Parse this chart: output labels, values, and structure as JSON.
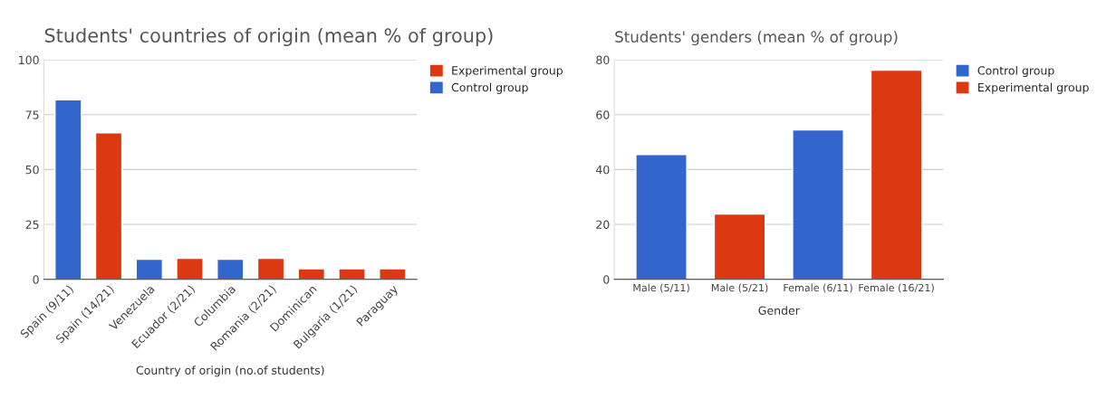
{
  "chart_data": [
    {
      "type": "bar",
      "title": "Students' countries of origin (mean % of group)",
      "xlabel": "Country of origin (no.of students)",
      "categories": [
        "Spain (9/11)",
        "Spain (14/21)",
        "Venezuela",
        "Ecuador (2/21)",
        "Columbia",
        "Romania (2/21)",
        "Dominican",
        "Bulgaria (1/21)",
        "Paraguay"
      ],
      "series": [
        {
          "name": "Experimental group",
          "color": "#dc3912",
          "values": [
            null,
            66.7,
            null,
            9.5,
            null,
            9.5,
            4.8,
            4.8,
            4.8
          ]
        },
        {
          "name": "Control group",
          "color": "#3366cc",
          "values": [
            81.8,
            null,
            9.1,
            null,
            9.1,
            null,
            null,
            null,
            null
          ]
        }
      ],
      "ylim": [
        0,
        100
      ],
      "yticks": [
        0,
        25,
        50,
        75,
        100
      ],
      "grid": "y",
      "legend": "top right"
    },
    {
      "type": "bar",
      "title": "Students' genders (mean % of group)",
      "xlabel": "Gender",
      "categories": [
        "Male (5/11)",
        "Male (5/21)",
        "Female (6/11)",
        "Female (16/21)"
      ],
      "series": [
        {
          "name": "Control group",
          "color": "#3366cc",
          "values": [
            45.5,
            null,
            54.5,
            null
          ]
        },
        {
          "name": "Experimental group",
          "color": "#dc3912",
          "values": [
            null,
            23.8,
            null,
            76.2
          ]
        }
      ],
      "ylim": [
        0,
        80
      ],
      "yticks": [
        0,
        20,
        40,
        60,
        80
      ],
      "grid": "y",
      "legend": "top right"
    }
  ]
}
